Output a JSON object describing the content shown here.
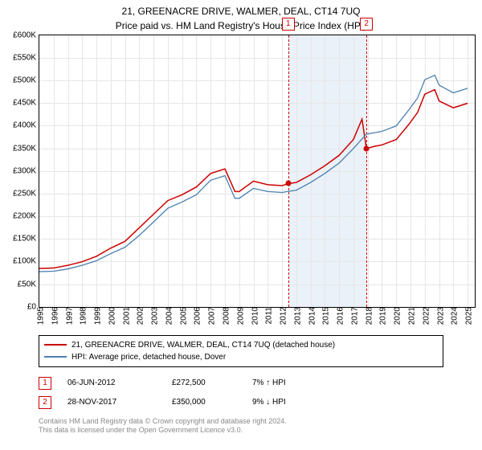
{
  "title": "21, GREENACRE DRIVE, WALMER, DEAL, CT14 7UQ",
  "subtitle": "Price paid vs. HM Land Registry's House Price Index (HPI)",
  "chart": {
    "type": "line",
    "background_color": "#ffffff",
    "grid_color": "#e6e6e6",
    "border_color": "#000000",
    "shaded_band_color": "#eaf1f8",
    "marker_line_color": "#cc0000",
    "marker_line_dash": "dashed",
    "x": {
      "min": 1995,
      "max": 2025.5,
      "ticks": [
        1995,
        1996,
        1997,
        1998,
        1999,
        2000,
        2001,
        2002,
        2003,
        2004,
        2005,
        2006,
        2007,
        2008,
        2009,
        2010,
        2011,
        2012,
        2013,
        2014,
        2015,
        2016,
        2017,
        2018,
        2019,
        2020,
        2021,
        2022,
        2023,
        2024,
        2025
      ],
      "label_fontsize": 10,
      "label_rotation_deg": -90
    },
    "y": {
      "min": 0,
      "max": 600000,
      "tick_step": 50000,
      "labels": [
        "£0",
        "£50K",
        "£100K",
        "£150K",
        "£200K",
        "£250K",
        "£300K",
        "£350K",
        "£400K",
        "£450K",
        "£500K",
        "£550K",
        "£600K"
      ],
      "label_fontsize": 10
    },
    "shaded_band": {
      "x_from": 2012.43,
      "x_to": 2017.91
    },
    "series": [
      {
        "name": "21, GREENACRE DRIVE, WALMER, DEAL, CT14 7UQ (detached house)",
        "color": "#cc0000",
        "line_width": 1.5,
        "points": [
          [
            1995,
            85000
          ],
          [
            1996,
            86000
          ],
          [
            1997,
            92000
          ],
          [
            1998,
            100000
          ],
          [
            1999,
            112000
          ],
          [
            2000,
            130000
          ],
          [
            2001,
            145000
          ],
          [
            2002,
            175000
          ],
          [
            2003,
            205000
          ],
          [
            2004,
            235000
          ],
          [
            2005,
            248000
          ],
          [
            2006,
            265000
          ],
          [
            2007,
            295000
          ],
          [
            2008,
            305000
          ],
          [
            2008.7,
            255000
          ],
          [
            2009,
            255000
          ],
          [
            2010,
            278000
          ],
          [
            2011,
            270000
          ],
          [
            2012,
            268000
          ],
          [
            2012.43,
            272500
          ],
          [
            2013,
            275000
          ],
          [
            2014,
            292000
          ],
          [
            2015,
            312000
          ],
          [
            2016,
            335000
          ],
          [
            2017,
            370000
          ],
          [
            2017.6,
            415000
          ],
          [
            2017.91,
            350000
          ],
          [
            2018.5,
            355000
          ],
          [
            2019,
            358000
          ],
          [
            2020,
            370000
          ],
          [
            2020.8,
            400000
          ],
          [
            2021.5,
            430000
          ],
          [
            2022,
            470000
          ],
          [
            2022.7,
            480000
          ],
          [
            2023,
            455000
          ],
          [
            2024,
            440000
          ],
          [
            2025,
            450000
          ]
        ]
      },
      {
        "name": "HPI: Average price, detached house, Dover",
        "color": "#4a7fb0",
        "line_width": 1.3,
        "points": [
          [
            1995,
            78000
          ],
          [
            1996,
            79000
          ],
          [
            1997,
            84000
          ],
          [
            1998,
            92000
          ],
          [
            1999,
            102000
          ],
          [
            2000,
            118000
          ],
          [
            2001,
            132000
          ],
          [
            2002,
            158000
          ],
          [
            2003,
            188000
          ],
          [
            2004,
            218000
          ],
          [
            2005,
            232000
          ],
          [
            2006,
            248000
          ],
          [
            2007,
            280000
          ],
          [
            2008,
            290000
          ],
          [
            2008.7,
            240000
          ],
          [
            2009,
            240000
          ],
          [
            2010,
            262000
          ],
          [
            2011,
            255000
          ],
          [
            2012,
            253000
          ],
          [
            2013,
            258000
          ],
          [
            2014,
            275000
          ],
          [
            2015,
            295000
          ],
          [
            2016,
            318000
          ],
          [
            2017,
            350000
          ],
          [
            2017.91,
            382000
          ],
          [
            2018.5,
            385000
          ],
          [
            2019,
            388000
          ],
          [
            2020,
            400000
          ],
          [
            2020.8,
            432000
          ],
          [
            2021.5,
            462000
          ],
          [
            2022,
            502000
          ],
          [
            2022.7,
            512000
          ],
          [
            2023,
            490000
          ],
          [
            2024,
            473000
          ],
          [
            2025,
            483000
          ]
        ]
      }
    ],
    "sale_markers": [
      {
        "n": "1",
        "x": 2012.43,
        "y": 272500,
        "color": "#cc0000"
      },
      {
        "n": "2",
        "x": 2017.91,
        "y": 350000,
        "color": "#cc0000"
      }
    ]
  },
  "legend": {
    "border_color": "#000000",
    "fontsize": 10,
    "items": [
      {
        "color": "#cc0000",
        "label": "21, GREENACRE DRIVE, WALMER, DEAL, CT14 7UQ (detached house)"
      },
      {
        "color": "#4a7fb0",
        "label": "HPI: Average price, detached house, Dover"
      }
    ]
  },
  "sales": [
    {
      "n": "1",
      "date": "06-JUN-2012",
      "price": "£272,500",
      "diff": "7% ↑ HPI"
    },
    {
      "n": "2",
      "date": "28-NOV-2017",
      "price": "£350,000",
      "diff": "9% ↓ HPI"
    }
  ],
  "footer": {
    "line1": "Contains HM Land Registry data © Crown copyright and database right 2024.",
    "line2": "This data is licensed under the Open Government Licence v3.0."
  }
}
